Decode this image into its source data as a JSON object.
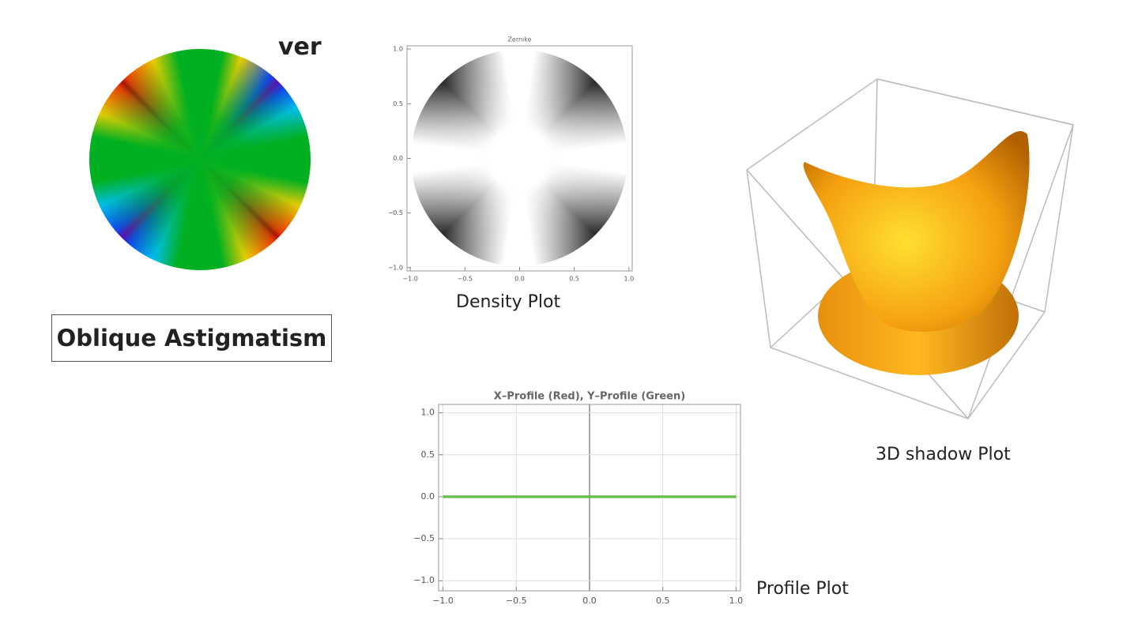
{
  "clipped_heading": "ver",
  "label_box": "Oblique Astigmatism",
  "captions": {
    "density": "Density Plot",
    "shadow": "3D shadow Plot",
    "profile": "Profile Plot"
  },
  "chart_data": [
    {
      "type": "density",
      "title": "Zernike",
      "xlim": [
        -1.03,
        1.03
      ],
      "ylim": [
        -1.03,
        1.03
      ],
      "xticks": [
        {
          "value": -1,
          "label": "−1.0"
        },
        {
          "value": -0.5,
          "label": "−0.5"
        },
        {
          "value": 0,
          "label": "0.0"
        },
        0.5,
        {
          "value": 1,
          "label": "1.0"
        }
      ],
      "yticks": [
        {
          "value": -1,
          "label": "−1.0"
        },
        {
          "value": -0.5,
          "label": "−0.5"
        },
        {
          "value": 0,
          "label": "0.0"
        },
        0.5,
        {
          "value": 1,
          "label": "1.0"
        }
      ]
    },
    {
      "type": "line",
      "title": "X–Profile (Red), Y–Profile (Green)",
      "xlim": [
        -1.03,
        1.03
      ],
      "ylim": [
        -1.12,
        1.1
      ],
      "xticks": [
        {
          "value": -1,
          "label": "−1.0"
        },
        {
          "value": -0.5,
          "label": "−0.5"
        },
        {
          "value": 0,
          "label": "0.0"
        },
        0.5,
        {
          "value": 1,
          "label": "1.0"
        }
      ],
      "yticks": [
        {
          "value": -1,
          "label": "−1.0"
        },
        {
          "value": -0.5,
          "label": "−0.5"
        },
        {
          "value": 0,
          "label": "0.0"
        },
        0.5,
        {
          "value": 1,
          "label": "1.0"
        }
      ],
      "grid": true,
      "x": [
        -1,
        1
      ],
      "series": [
        {
          "color": "#e03030",
          "values": [
            0,
            0
          ]
        },
        {
          "color": "#5cc24a",
          "values": [
            0,
            0
          ]
        }
      ]
    }
  ]
}
